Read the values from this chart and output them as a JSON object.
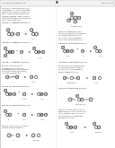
{
  "bg_color": "#ffffff",
  "border_color": "#cccccc",
  "header_bg": "#f0f0f0",
  "text_color": "#222222",
  "light_text": "#555555",
  "header_text_left": "U.S. Patent Application Pub.",
  "header_text_right": "Jan. 20, 2015",
  "page_num": "25",
  "col_divider": 63,
  "fig_width": 1.28,
  "fig_height": 1.65,
  "dpi": 100,
  "ring_color": "#1a1a1a",
  "ring_lw": 0.35
}
